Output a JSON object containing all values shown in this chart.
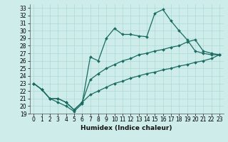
{
  "xlabel": "Humidex (Indice chaleur)",
  "background_color": "#cdecea",
  "grid_color": "#add8d5",
  "line_color": "#1a6b60",
  "xlim": [
    -0.5,
    23.5
  ],
  "ylim": [
    19,
    33.5
  ],
  "yticks": [
    19,
    20,
    21,
    22,
    23,
    24,
    25,
    26,
    27,
    28,
    29,
    30,
    31,
    32,
    33
  ],
  "xticks": [
    0,
    1,
    2,
    3,
    4,
    5,
    6,
    7,
    8,
    9,
    10,
    11,
    12,
    13,
    14,
    15,
    16,
    17,
    18,
    19,
    20,
    21,
    22,
    23
  ],
  "line1_x": [
    0,
    1,
    2,
    3,
    4,
    5,
    6,
    7,
    8,
    9,
    10,
    11,
    12,
    13,
    14,
    15,
    16,
    17,
    18,
    19,
    20,
    21,
    22,
    23
  ],
  "line1_y": [
    23.0,
    22.2,
    21.0,
    20.5,
    20.0,
    19.3,
    20.3,
    26.5,
    26.0,
    29.0,
    30.3,
    29.5,
    29.5,
    29.3,
    29.2,
    32.3,
    32.8,
    31.3,
    30.0,
    28.8,
    27.3,
    27.0,
    26.8,
    26.8
  ],
  "line2_x": [
    0,
    1,
    2,
    3,
    4,
    5,
    6,
    7,
    8,
    9,
    10,
    11,
    12,
    13,
    14,
    15,
    16,
    17,
    18,
    19,
    20,
    21,
    22,
    23
  ],
  "line2_y": [
    23.0,
    22.2,
    21.0,
    21.0,
    20.5,
    19.5,
    20.5,
    23.5,
    24.3,
    25.0,
    25.5,
    26.0,
    26.3,
    26.8,
    27.0,
    27.3,
    27.5,
    27.8,
    28.0,
    28.5,
    28.8,
    27.3,
    27.0,
    26.8
  ],
  "line3_x": [
    0,
    1,
    2,
    3,
    4,
    5,
    6,
    7,
    8,
    9,
    10,
    11,
    12,
    13,
    14,
    15,
    16,
    17,
    18,
    19,
    20,
    21,
    22,
    23
  ],
  "line3_y": [
    23.0,
    22.2,
    21.0,
    21.0,
    20.5,
    19.5,
    20.5,
    21.5,
    22.0,
    22.5,
    23.0,
    23.3,
    23.7,
    24.0,
    24.3,
    24.5,
    24.8,
    25.0,
    25.3,
    25.5,
    25.8,
    26.0,
    26.3,
    26.8
  ],
  "tick_fontsize": 5.5,
  "xlabel_fontsize": 6.5
}
